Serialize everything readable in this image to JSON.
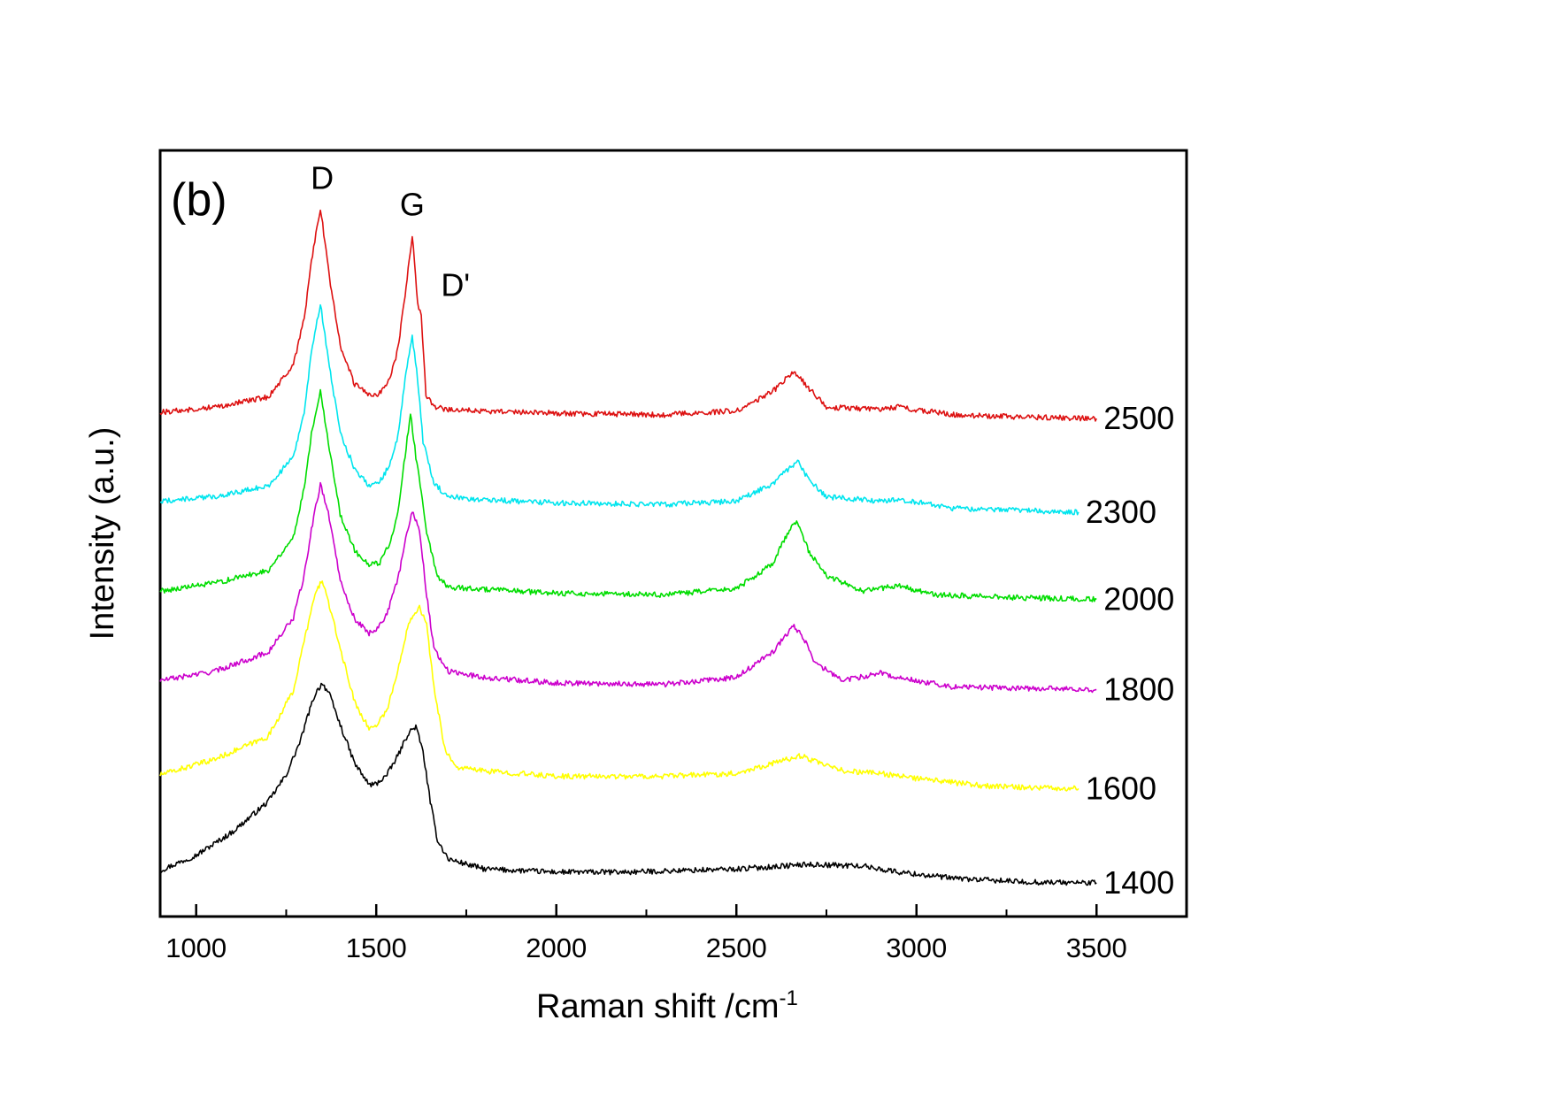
{
  "chart_data": {
    "type": "line",
    "panel_label": "(b)",
    "xlabel": "Raman shift /cm",
    "xlabel_sup": "-1",
    "ylabel": "Intensity (a.u.)",
    "xlim": [
      900,
      3750
    ],
    "ylim": [
      0,
      1
    ],
    "x_ticks": [
      1000,
      1500,
      2000,
      2500,
      3000,
      3500
    ],
    "x_minor_ticks": [
      1250,
      1750,
      2250,
      2750,
      3250
    ],
    "y_ticks_shown": false,
    "grid": false,
    "legend": "none",
    "peak_annotations": [
      {
        "label": "D",
        "x": 1350,
        "y": 0.95
      },
      {
        "label": "G",
        "x": 1600,
        "y": 0.915
      },
      {
        "label": "D'",
        "x": 1720,
        "y": 0.81
      }
    ],
    "series": [
      {
        "name": "1400",
        "color": "#000000",
        "x_end": 3500,
        "points": [
          [
            900,
            0.06
          ],
          [
            1000,
            0.08
          ],
          [
            1100,
            0.11
          ],
          [
            1200,
            0.15
          ],
          [
            1250,
            0.185
          ],
          [
            1290,
            0.23
          ],
          [
            1310,
            0.262
          ],
          [
            1330,
            0.29
          ],
          [
            1350,
            0.305
          ],
          [
            1370,
            0.29
          ],
          [
            1400,
            0.25
          ],
          [
            1440,
            0.2
          ],
          [
            1480,
            0.172
          ],
          [
            1500,
            0.173
          ],
          [
            1530,
            0.185
          ],
          [
            1560,
            0.21
          ],
          [
            1590,
            0.24
          ],
          [
            1610,
            0.248
          ],
          [
            1630,
            0.215
          ],
          [
            1650,
            0.15
          ],
          [
            1670,
            0.1
          ],
          [
            1700,
            0.075
          ],
          [
            1800,
            0.062
          ],
          [
            2000,
            0.058
          ],
          [
            2200,
            0.058
          ],
          [
            2500,
            0.062
          ],
          [
            2700,
            0.068
          ],
          [
            2850,
            0.066
          ],
          [
            2950,
            0.058
          ],
          [
            3100,
            0.05
          ],
          [
            3300,
            0.045
          ],
          [
            3500,
            0.044
          ]
        ]
      },
      {
        "name": "1600",
        "color": "#ffff00",
        "x_end": 3450,
        "points": [
          [
            900,
            0.185
          ],
          [
            1050,
            0.205
          ],
          [
            1200,
            0.235
          ],
          [
            1270,
            0.295
          ],
          [
            1300,
            0.36
          ],
          [
            1330,
            0.42
          ],
          [
            1350,
            0.44
          ],
          [
            1370,
            0.405
          ],
          [
            1400,
            0.35
          ],
          [
            1440,
            0.28
          ],
          [
            1480,
            0.245
          ],
          [
            1500,
            0.25
          ],
          [
            1530,
            0.27
          ],
          [
            1560,
            0.32
          ],
          [
            1590,
            0.385
          ],
          [
            1620,
            0.405
          ],
          [
            1640,
            0.38
          ],
          [
            1660,
            0.3
          ],
          [
            1690,
            0.22
          ],
          [
            1720,
            0.195
          ],
          [
            1800,
            0.19
          ],
          [
            2000,
            0.183
          ],
          [
            2300,
            0.183
          ],
          [
            2500,
            0.187
          ],
          [
            2600,
            0.2
          ],
          [
            2680,
            0.21
          ],
          [
            2740,
            0.198
          ],
          [
            2800,
            0.19
          ],
          [
            2900,
            0.187
          ],
          [
            3000,
            0.18
          ],
          [
            3200,
            0.17
          ],
          [
            3450,
            0.167
          ]
        ]
      },
      {
        "name": "1800",
        "color": "#cc00cc",
        "x_end": 3500,
        "points": [
          [
            900,
            0.308
          ],
          [
            1050,
            0.32
          ],
          [
            1200,
            0.345
          ],
          [
            1270,
            0.39
          ],
          [
            1300,
            0.445
          ],
          [
            1320,
            0.505
          ],
          [
            1345,
            0.565
          ],
          [
            1370,
            0.52
          ],
          [
            1400,
            0.44
          ],
          [
            1440,
            0.388
          ],
          [
            1480,
            0.37
          ],
          [
            1500,
            0.375
          ],
          [
            1530,
            0.395
          ],
          [
            1560,
            0.44
          ],
          [
            1585,
            0.5
          ],
          [
            1600,
            0.53
          ],
          [
            1620,
            0.505
          ],
          [
            1640,
            0.42
          ],
          [
            1660,
            0.35
          ],
          [
            1700,
            0.32
          ],
          [
            1800,
            0.312
          ],
          [
            2000,
            0.305
          ],
          [
            2300,
            0.303
          ],
          [
            2500,
            0.312
          ],
          [
            2600,
            0.345
          ],
          [
            2660,
            0.38
          ],
          [
            2690,
            0.36
          ],
          [
            2720,
            0.33
          ],
          [
            2800,
            0.308
          ],
          [
            2900,
            0.318
          ],
          [
            2950,
            0.312
          ],
          [
            3100,
            0.3
          ],
          [
            3300,
            0.298
          ],
          [
            3500,
            0.296
          ]
        ]
      },
      {
        "name": "2000",
        "color": "#00dd00",
        "x_end": 3500,
        "points": [
          [
            900,
            0.425
          ],
          [
            1050,
            0.435
          ],
          [
            1200,
            0.452
          ],
          [
            1270,
            0.495
          ],
          [
            1300,
            0.56
          ],
          [
            1320,
            0.63
          ],
          [
            1345,
            0.688
          ],
          [
            1370,
            0.61
          ],
          [
            1400,
            0.525
          ],
          [
            1440,
            0.478
          ],
          [
            1480,
            0.458
          ],
          [
            1510,
            0.462
          ],
          [
            1540,
            0.49
          ],
          [
            1560,
            0.53
          ],
          [
            1580,
            0.6
          ],
          [
            1595,
            0.658
          ],
          [
            1610,
            0.6
          ],
          [
            1625,
            0.555
          ],
          [
            1640,
            0.5
          ],
          [
            1670,
            0.445
          ],
          [
            1700,
            0.43
          ],
          [
            1800,
            0.427
          ],
          [
            2000,
            0.422
          ],
          [
            2300,
            0.42
          ],
          [
            2500,
            0.428
          ],
          [
            2600,
            0.46
          ],
          [
            2650,
            0.508
          ],
          [
            2670,
            0.515
          ],
          [
            2700,
            0.478
          ],
          [
            2750,
            0.445
          ],
          [
            2850,
            0.425
          ],
          [
            2950,
            0.432
          ],
          [
            3050,
            0.42
          ],
          [
            3300,
            0.416
          ],
          [
            3500,
            0.414
          ]
        ]
      },
      {
        "name": "2300",
        "color": "#00e5ee",
        "x_end": 3450,
        "points": [
          [
            900,
            0.542
          ],
          [
            1050,
            0.548
          ],
          [
            1200,
            0.562
          ],
          [
            1270,
            0.6
          ],
          [
            1300,
            0.66
          ],
          [
            1320,
            0.735
          ],
          [
            1345,
            0.8
          ],
          [
            1370,
            0.718
          ],
          [
            1400,
            0.63
          ],
          [
            1440,
            0.585
          ],
          [
            1480,
            0.563
          ],
          [
            1510,
            0.567
          ],
          [
            1540,
            0.592
          ],
          [
            1560,
            0.628
          ],
          [
            1580,
            0.7
          ],
          [
            1600,
            0.758
          ],
          [
            1615,
            0.7
          ],
          [
            1630,
            0.62
          ],
          [
            1660,
            0.565
          ],
          [
            1700,
            0.548
          ],
          [
            1800,
            0.544
          ],
          [
            2000,
            0.54
          ],
          [
            2300,
            0.538
          ],
          [
            2500,
            0.542
          ],
          [
            2600,
            0.565
          ],
          [
            2670,
            0.595
          ],
          [
            2700,
            0.57
          ],
          [
            2750,
            0.548
          ],
          [
            2900,
            0.542
          ],
          [
            2950,
            0.545
          ],
          [
            3100,
            0.533
          ],
          [
            3300,
            0.53
          ],
          [
            3450,
            0.528
          ]
        ]
      },
      {
        "name": "2500",
        "color": "#dd1111",
        "x_end": 3500,
        "points": [
          [
            900,
            0.658
          ],
          [
            1050,
            0.665
          ],
          [
            1200,
            0.678
          ],
          [
            1270,
            0.72
          ],
          [
            1300,
            0.78
          ],
          [
            1320,
            0.855
          ],
          [
            1345,
            0.925
          ],
          [
            1370,
            0.835
          ],
          [
            1400,
            0.745
          ],
          [
            1440,
            0.695
          ],
          [
            1480,
            0.68
          ],
          [
            1510,
            0.683
          ],
          [
            1540,
            0.705
          ],
          [
            1560,
            0.74
          ],
          [
            1580,
            0.81
          ],
          [
            1600,
            0.89
          ],
          [
            1615,
            0.8
          ],
          [
            1625,
            0.785
          ],
          [
            1638,
            0.68
          ],
          [
            1660,
            0.665
          ],
          [
            1700,
            0.662
          ],
          [
            1800,
            0.66
          ],
          [
            2000,
            0.657
          ],
          [
            2300,
            0.655
          ],
          [
            2500,
            0.66
          ],
          [
            2600,
            0.685
          ],
          [
            2660,
            0.712
          ],
          [
            2700,
            0.69
          ],
          [
            2750,
            0.665
          ],
          [
            2900,
            0.662
          ],
          [
            2950,
            0.665
          ],
          [
            3100,
            0.655
          ],
          [
            3300,
            0.652
          ],
          [
            3500,
            0.65
          ]
        ]
      }
    ]
  }
}
